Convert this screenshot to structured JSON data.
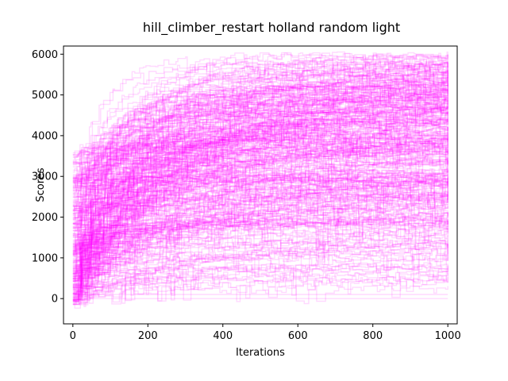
{
  "chart_data": {
    "type": "line",
    "title": "hill_climber_restart holland random light",
    "xlabel": "Iterations",
    "ylabel": "Scores",
    "xlim": [
      -25,
      1025
    ],
    "ylim": [
      -620,
      6200
    ],
    "xticks": [
      0,
      200,
      400,
      600,
      800,
      1000
    ],
    "yticks": [
      0,
      1000,
      2000,
      3000,
      4000,
      5000,
      6000
    ],
    "grid": false,
    "legend": "none",
    "series_color": "#ff00ff",
    "series_opacity": 0.15,
    "series_count": 300,
    "series_x_range": [
      0,
      1000
    ],
    "series_start_range": [
      -150,
      3600
    ],
    "series_final_range": [
      0,
      6000
    ],
    "representative_series": [
      {
        "x": [
          0,
          50,
          100,
          200,
          400,
          600,
          800,
          1000
        ],
        "y": [
          2900,
          3700,
          4200,
          4800,
          5400,
          5800,
          5950,
          6000
        ]
      },
      {
        "x": [
          0,
          50,
          100,
          200,
          400,
          600,
          800,
          1000
        ],
        "y": [
          1500,
          2600,
          3300,
          4100,
          4800,
          5200,
          5400,
          5500
        ]
      },
      {
        "x": [
          0,
          50,
          100,
          200,
          400,
          600,
          800,
          1000
        ],
        "y": [
          800,
          1500,
          2200,
          3000,
          3900,
          4400,
          4700,
          4900
        ]
      },
      {
        "x": [
          0,
          50,
          100,
          200,
          400,
          600,
          800,
          1000
        ],
        "y": [
          300,
          600,
          900,
          1500,
          2300,
          2900,
          3300,
          3500
        ]
      },
      {
        "x": [
          0,
          50,
          100,
          200,
          400,
          600,
          800,
          1000
        ],
        "y": [
          0,
          0,
          0,
          0,
          0,
          0,
          0,
          0
        ]
      },
      {
        "x": [
          0,
          50,
          100,
          200,
          400,
          600,
          800,
          1000
        ],
        "y": [
          100,
          100,
          100,
          100,
          100,
          100,
          100,
          100
        ]
      }
    ]
  }
}
